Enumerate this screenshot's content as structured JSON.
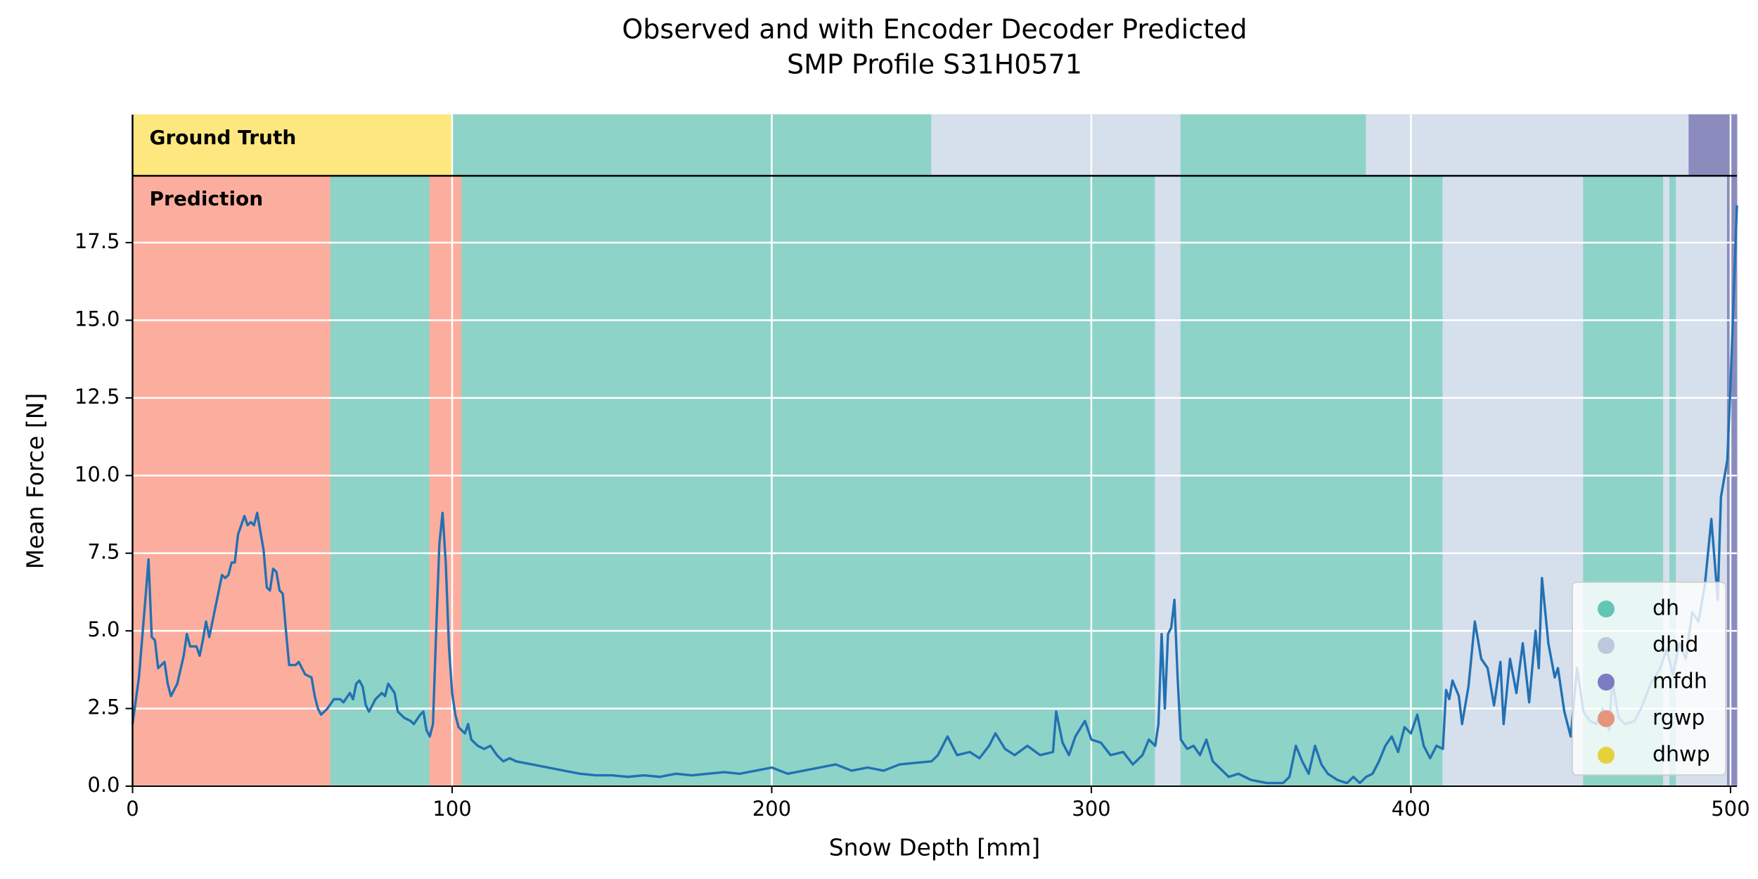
{
  "chart_data": {
    "type": "line",
    "title": [
      "Observed and with Encoder Decoder Predicted",
      "SMP Profile S31H0571"
    ],
    "xlabel": "Snow Depth [mm]",
    "ylabel": "Mean Force [N]",
    "band_labels": [
      "Ground Truth",
      "Prediction"
    ],
    "xlim": [
      0,
      502
    ],
    "ylim": [
      0,
      19.65
    ],
    "xticks": [
      0,
      100,
      200,
      300,
      400,
      500
    ],
    "yticks": [
      {
        "value": 0,
        "label": "0.0"
      },
      2.5,
      {
        "value": 5,
        "label": "5.0"
      },
      7.5,
      {
        "value": 10,
        "label": "10.0"
      },
      12.5,
      {
        "value": 15,
        "label": "15.0"
      },
      17.5
    ],
    "grid": true,
    "legend": "lower right",
    "classes": [
      {
        "name": "dh",
        "color": "#8dd3c7"
      },
      {
        "name": "dhid",
        "color": "#d6dfec"
      },
      {
        "name": "mfdh",
        "color": "#8b8cbd"
      },
      {
        "name": "rgwp",
        "color": "#fcae9e"
      },
      {
        "name": "dhwp",
        "color": "#fde77e"
      }
    ],
    "ground_truth": [
      {
        "class": 4,
        "start": 0,
        "end": 100
      },
      {
        "class": 0,
        "start": 100,
        "end": 250
      },
      {
        "class": 1,
        "start": 250,
        "end": 328
      },
      {
        "class": 0,
        "start": 328,
        "end": 386
      },
      {
        "class": 1,
        "start": 386,
        "end": 487
      },
      {
        "class": 2,
        "start": 487,
        "end": 502
      }
    ],
    "prediction": [
      {
        "class": 3,
        "start": 0,
        "end": 62
      },
      {
        "class": 0,
        "start": 62,
        "end": 93
      },
      {
        "class": 3,
        "start": 93,
        "end": 103
      },
      {
        "class": 0,
        "start": 103,
        "end": 320
      },
      {
        "class": 1,
        "start": 320,
        "end": 328
      },
      {
        "class": 0,
        "start": 328,
        "end": 410
      },
      {
        "class": 1,
        "start": 410,
        "end": 454
      },
      {
        "class": 0,
        "start": 454,
        "end": 479
      },
      {
        "class": 1,
        "start": 479,
        "end": 481
      },
      {
        "class": 0,
        "start": 481,
        "end": 483
      },
      {
        "class": 1,
        "start": 483,
        "end": 499
      },
      {
        "class": 2,
        "start": 499,
        "end": 502
      }
    ],
    "series": [
      {
        "color": "#2271b3",
        "x": [
          0,
          2,
          4,
          5,
          6,
          7,
          8,
          10,
          11,
          12,
          14,
          16,
          17,
          18,
          20,
          21,
          22,
          23,
          24,
          26,
          28,
          29,
          30,
          31,
          32,
          33,
          35,
          36,
          37,
          38,
          39,
          40,
          41,
          42,
          43,
          44,
          45,
          46,
          47,
          48,
          49,
          51,
          52,
          54,
          56,
          57,
          58,
          59,
          61,
          63,
          65,
          66,
          68,
          69,
          70,
          71,
          72,
          73,
          74,
          76,
          78,
          79,
          80,
          82,
          83,
          85,
          87,
          88,
          90,
          91,
          92,
          93,
          94,
          95,
          96,
          97,
          98,
          99,
          100,
          101,
          102,
          104,
          105,
          106,
          108,
          110,
          112,
          114,
          116,
          118,
          120,
          125,
          130,
          135,
          140,
          145,
          150,
          155,
          160,
          165,
          170,
          175,
          180,
          185,
          190,
          195,
          200,
          205,
          210,
          215,
          220,
          225,
          230,
          235,
          240,
          245,
          250,
          252,
          255,
          258,
          262,
          265,
          268,
          270,
          273,
          276,
          280,
          284,
          288,
          289,
          291,
          293,
          295,
          298,
          300,
          303,
          306,
          310,
          313,
          316,
          318,
          320,
          321,
          322,
          323,
          324,
          325,
          326,
          327,
          328,
          330,
          332,
          334,
          336,
          338,
          340,
          343,
          346,
          350,
          355,
          360,
          362,
          364,
          366,
          368,
          370,
          372,
          374,
          377,
          380,
          382,
          384,
          386,
          388,
          390,
          392,
          394,
          396,
          398,
          400,
          402,
          404,
          406,
          408,
          410,
          411,
          412,
          413,
          415,
          416,
          418,
          420,
          422,
          424,
          426,
          428,
          429,
          431,
          433,
          435,
          437,
          439,
          440,
          441,
          443,
          445,
          446,
          448,
          450,
          452,
          454,
          456,
          458,
          460,
          462,
          463,
          465,
          467,
          470,
          472,
          475,
          478,
          480,
          482,
          484,
          486,
          488,
          490,
          492,
          494,
          496,
          497,
          499,
          500,
          501,
          502
        ],
        "values": [
          2.0,
          3.5,
          6.0,
          7.3,
          4.8,
          4.7,
          3.8,
          4.0,
          3.3,
          2.9,
          3.3,
          4.2,
          4.9,
          4.5,
          4.5,
          4.2,
          4.7,
          5.3,
          4.8,
          5.8,
          6.8,
          6.7,
          6.8,
          7.2,
          7.2,
          8.1,
          8.7,
          8.4,
          8.5,
          8.4,
          8.8,
          8.2,
          7.6,
          6.4,
          6.3,
          7.0,
          6.9,
          6.3,
          6.2,
          5.0,
          3.9,
          3.9,
          4.0,
          3.6,
          3.5,
          2.9,
          2.5,
          2.3,
          2.5,
          2.8,
          2.8,
          2.7,
          3.0,
          2.8,
          3.3,
          3.4,
          3.2,
          2.6,
          2.4,
          2.8,
          3.0,
          2.9,
          3.3,
          3.0,
          2.4,
          2.2,
          2.1,
          2.0,
          2.3,
          2.4,
          1.8,
          1.6,
          2.0,
          5.0,
          7.8,
          8.8,
          7.2,
          4.5,
          3.0,
          2.3,
          1.9,
          1.7,
          2.0,
          1.5,
          1.3,
          1.2,
          1.3,
          1.0,
          0.8,
          0.9,
          0.8,
          0.7,
          0.6,
          0.5,
          0.4,
          0.35,
          0.35,
          0.3,
          0.35,
          0.3,
          0.4,
          0.35,
          0.4,
          0.45,
          0.4,
          0.5,
          0.6,
          0.4,
          0.5,
          0.6,
          0.7,
          0.5,
          0.6,
          0.5,
          0.7,
          0.75,
          0.8,
          1.0,
          1.6,
          1.0,
          1.1,
          0.9,
          1.3,
          1.7,
          1.2,
          1.0,
          1.3,
          1.0,
          1.1,
          2.4,
          1.4,
          1.0,
          1.6,
          2.1,
          1.5,
          1.4,
          1.0,
          1.1,
          0.7,
          1.0,
          1.5,
          1.3,
          2.0,
          4.9,
          2.5,
          4.9,
          5.1,
          6.0,
          3.5,
          1.5,
          1.2,
          1.3,
          1.0,
          1.5,
          0.8,
          0.6,
          0.3,
          0.4,
          0.2,
          0.1,
          0.1,
          0.3,
          1.3,
          0.8,
          0.4,
          1.3,
          0.7,
          0.4,
          0.2,
          0.1,
          0.3,
          0.1,
          0.3,
          0.4,
          0.8,
          1.3,
          1.6,
          1.1,
          1.9,
          1.7,
          2.3,
          1.3,
          0.9,
          1.3,
          1.2,
          3.1,
          2.8,
          3.4,
          2.9,
          2.0,
          3.2,
          5.3,
          4.1,
          3.8,
          2.6,
          4.0,
          2.0,
          4.1,
          3.0,
          4.6,
          2.7,
          5.0,
          3.8,
          6.7,
          4.6,
          3.5,
          3.8,
          2.4,
          1.6,
          3.8,
          2.4,
          2.1,
          2.0,
          2.5,
          1.8,
          3.4,
          2.2,
          2.0,
          2.1,
          2.5,
          3.3,
          3.8,
          4.4,
          3.6,
          4.6,
          4.1,
          5.6,
          5.3,
          6.5,
          8.6,
          6.0,
          9.3,
          10.5,
          12.9,
          15.8,
          18.7
        ]
      }
    ]
  }
}
